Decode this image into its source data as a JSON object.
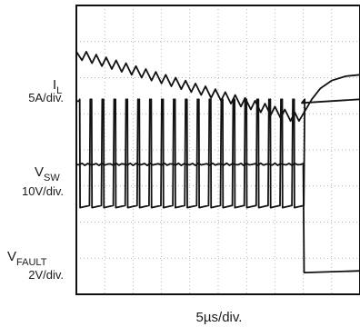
{
  "chart_data": {
    "type": "line",
    "title": "",
    "xlabel": "5µs/div.",
    "ylabel": "",
    "grid": true,
    "grid_style": "dotted",
    "x_divisions": 10,
    "y_divisions": 8,
    "channels": [
      {
        "label": "I",
        "label_sub": "L",
        "scale": "5A/div.",
        "color": "#111111",
        "points": [
          [
            0.0,
            0.72
          ],
          [
            0.2,
            0.48
          ],
          [
            0.35,
            0.72
          ],
          [
            0.55,
            0.4
          ],
          [
            0.7,
            0.64
          ],
          [
            0.9,
            0.32
          ],
          [
            1.05,
            0.56
          ],
          [
            1.25,
            0.24
          ],
          [
            1.4,
            0.48
          ],
          [
            1.6,
            0.16
          ],
          [
            1.75,
            0.4
          ],
          [
            1.95,
            0.08
          ],
          [
            2.1,
            0.32
          ],
          [
            2.3,
            0.0
          ],
          [
            2.45,
            0.24
          ],
          [
            2.65,
            -0.08
          ],
          [
            2.8,
            0.16
          ],
          [
            3.0,
            -0.16
          ],
          [
            3.15,
            0.08
          ],
          [
            3.35,
            -0.24
          ],
          [
            3.5,
            0.0
          ],
          [
            3.7,
            -0.32
          ],
          [
            3.85,
            -0.08
          ],
          [
            4.05,
            -0.4
          ],
          [
            4.2,
            -0.16
          ],
          [
            4.4,
            -0.48
          ],
          [
            4.55,
            -0.24
          ],
          [
            4.75,
            -0.56
          ],
          [
            4.9,
            -0.32
          ],
          [
            5.1,
            -0.64
          ],
          [
            5.25,
            -0.4
          ],
          [
            5.45,
            -0.72
          ],
          [
            5.6,
            -0.48
          ],
          [
            5.8,
            -0.8
          ],
          [
            5.95,
            -0.56
          ],
          [
            6.15,
            -0.88
          ],
          [
            6.3,
            -0.64
          ],
          [
            6.5,
            -0.96
          ],
          [
            6.65,
            -0.72
          ],
          [
            6.85,
            -1.04
          ],
          [
            7.0,
            -0.8
          ],
          [
            7.2,
            -1.12
          ],
          [
            7.35,
            -0.88
          ],
          [
            7.55,
            -1.2
          ],
          [
            7.7,
            -0.96
          ],
          [
            7.85,
            -1.2
          ],
          [
            8.0,
            -1.0
          ],
          [
            8.3,
            -0.6
          ],
          [
            8.6,
            -0.3
          ],
          [
            9.0,
            -0.08
          ],
          [
            9.5,
            0.04
          ],
          [
            10.0,
            0.08
          ]
        ]
      },
      {
        "label": "V",
        "label_sub": "SW",
        "scale": "10V/div.",
        "color": "#111111",
        "high": 3.0,
        "low": 0.0,
        "switch_period": 0.42,
        "switch_duty": 0.1,
        "switch_start": 0.1,
        "switch_end": 7.95,
        "end_level": 3.0
      },
      {
        "label": "V",
        "label_sub": "FAULT",
        "scale": "2V/div.",
        "color": "#111111",
        "high": 1.2,
        "low": -1.8,
        "fall_at": 8.0
      }
    ]
  }
}
